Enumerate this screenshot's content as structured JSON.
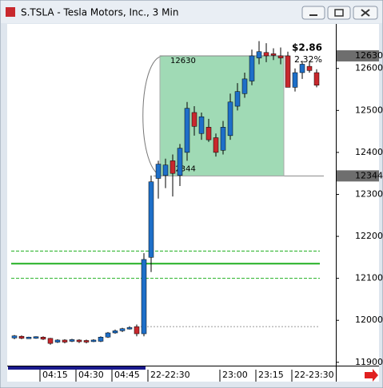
{
  "window": {
    "title": "S.TSLA - Tesla Motors, Inc., 3 Min"
  },
  "chart_data": {
    "type": "candlestick",
    "categories": [
      null,
      null,
      null,
      null,
      null,
      "04:15",
      null,
      null,
      null,
      null,
      "04:30",
      null,
      null,
      null,
      null,
      "04:45",
      null,
      null,
      null,
      null,
      "22-22:30",
      null,
      null,
      null,
      null,
      null,
      null,
      null,
      null,
      null,
      "23:00",
      null,
      null,
      null,
      null,
      "23:15",
      null,
      null,
      null,
      null,
      "22-23:30",
      null,
      null
    ],
    "open": [
      11958,
      11962,
      11958,
      11958,
      11960,
      11957,
      11948,
      11953,
      11950,
      11953,
      11952,
      11950,
      11950,
      11960,
      11970,
      11975,
      11980,
      11985,
      11968,
      12150,
      12338,
      12345,
      12380,
      12345,
      12400,
      12495,
      12445,
      12460,
      12435,
      12405,
      12440,
      12510,
      12540,
      12570,
      12625,
      12638,
      12635,
      12630,
      12630,
      12555,
      12590,
      12605,
      12590
    ],
    "high": [
      11965,
      11964,
      11961,
      11962,
      11962,
      11958,
      11955,
      11955,
      11956,
      11955,
      11954,
      11955,
      11962,
      11972,
      11978,
      11982,
      11986,
      11990,
      12160,
      12345,
      12380,
      12385,
      12395,
      12420,
      12520,
      12510,
      12495,
      12480,
      12445,
      12475,
      12540,
      12565,
      12590,
      12645,
      12665,
      12660,
      12648,
      12650,
      12640,
      12600,
      12618,
      12615,
      12598
    ],
    "low": [
      11955,
      11955,
      11957,
      11956,
      11953,
      11942,
      11946,
      11945,
      11948,
      11946,
      11945,
      11948,
      11948,
      11958,
      11968,
      11972,
      11978,
      11962,
      11962,
      12115,
      12290,
      12315,
      12295,
      12320,
      12380,
      12440,
      12430,
      12425,
      12390,
      12395,
      12430,
      12500,
      12530,
      12560,
      12610,
      12615,
      12620,
      12610,
      12555,
      12545,
      12575,
      12590,
      12555
    ],
    "close": [
      11963,
      11957,
      11960,
      11961,
      11955,
      11945,
      11953,
      11948,
      11954,
      11949,
      11948,
      11953,
      11960,
      11970,
      11975,
      11980,
      11983,
      11968,
      12145,
      12330,
      12372,
      12370,
      12350,
      12410,
      12505,
      12462,
      12485,
      12430,
      12400,
      12460,
      12520,
      12545,
      12575,
      12630,
      12640,
      12630,
      12632,
      12625,
      12555,
      12590,
      12610,
      12595,
      12560
    ],
    "up_color": "#1e6fc8",
    "down_color": "#c8282d",
    "ylim": [
      11892,
      12706
    ],
    "yticks": [
      11900,
      12000,
      12100,
      12200,
      12300,
      12400,
      12500,
      12600
    ],
    "price_markers": [
      12630,
      12344
    ],
    "levels": [
      {
        "value": 12165,
        "color": "#22b022",
        "style": "dashed"
      },
      {
        "value": 12135,
        "color": "#22b022",
        "style": "solid"
      },
      {
        "value": 12100,
        "color": "#22b022",
        "style": "dashed"
      },
      {
        "value": 11985,
        "color": "#999999",
        "style": "dotted"
      },
      {
        "value": 12344,
        "color": "#888888",
        "style": "solid"
      }
    ],
    "range": {
      "high": 12630,
      "low": 12344,
      "change_label": "$2.86",
      "percent_label": "2.32%",
      "color": "#8fd4a8"
    }
  }
}
